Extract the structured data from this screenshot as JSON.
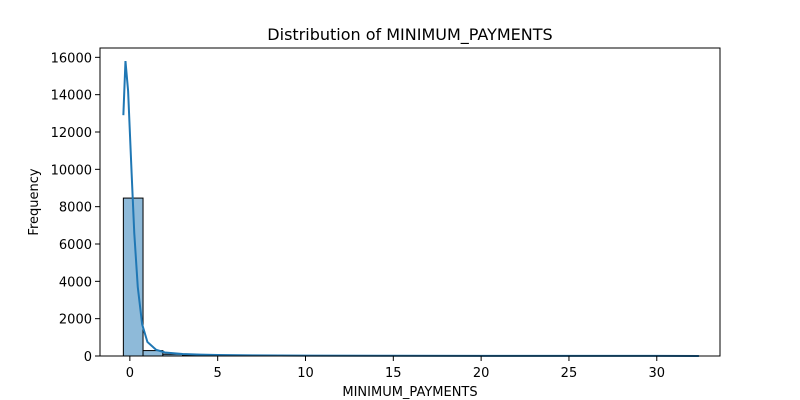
{
  "chart_data": {
    "type": "bar",
    "title": "Distribution of MINIMUM_PAYMENTS",
    "xlabel": "MINIMUM_PAYMENTS",
    "ylabel": "Frequency",
    "xlim": [
      -1.7,
      33.6
    ],
    "ylim": [
      0,
      16500
    ],
    "x_ticks": [
      0,
      5,
      10,
      15,
      20,
      25,
      30
    ],
    "y_ticks": [
      0,
      2000,
      4000,
      6000,
      8000,
      10000,
      12000,
      14000,
      16000
    ],
    "grid": false,
    "legend": "none",
    "colors": {
      "bar_fill": "#8ebad9",
      "bar_edge": "#000000",
      "kde_line": "#1f77b4",
      "axis": "#000000"
    },
    "histogram": {
      "bin_edges": [
        -0.37,
        0.75,
        1.88,
        3.0,
        4.13,
        5.25,
        6.38,
        7.5,
        8.63,
        9.75,
        10.88,
        12.0,
        13.13,
        14.25,
        15.38,
        16.5,
        17.63,
        18.75,
        19.88,
        21.0,
        22.13,
        23.25,
        24.38,
        25.5,
        26.63,
        27.75,
        28.88,
        30.0,
        31.13,
        32.25
      ],
      "counts": [
        8460,
        290,
        95,
        55,
        35,
        22,
        15,
        11,
        8,
        6,
        5,
        4,
        3,
        3,
        2,
        2,
        2,
        1,
        1,
        1,
        1,
        1,
        1,
        1,
        1,
        1,
        0,
        0,
        1
      ]
    },
    "kde": {
      "x": [
        -0.37,
        -0.25,
        -0.1,
        0.0,
        0.1,
        0.25,
        0.45,
        0.7,
        1.0,
        1.5,
        2.0,
        3.0,
        4.0,
        5.0,
        7.0,
        10.0,
        15.0,
        20.0,
        25.0,
        30.0,
        32.4
      ],
      "y": [
        12900,
        15800,
        14200,
        12000,
        9800,
        6600,
        3700,
        1700,
        750,
        330,
        190,
        110,
        75,
        55,
        35,
        22,
        12,
        8,
        6,
        4,
        3
      ]
    }
  }
}
